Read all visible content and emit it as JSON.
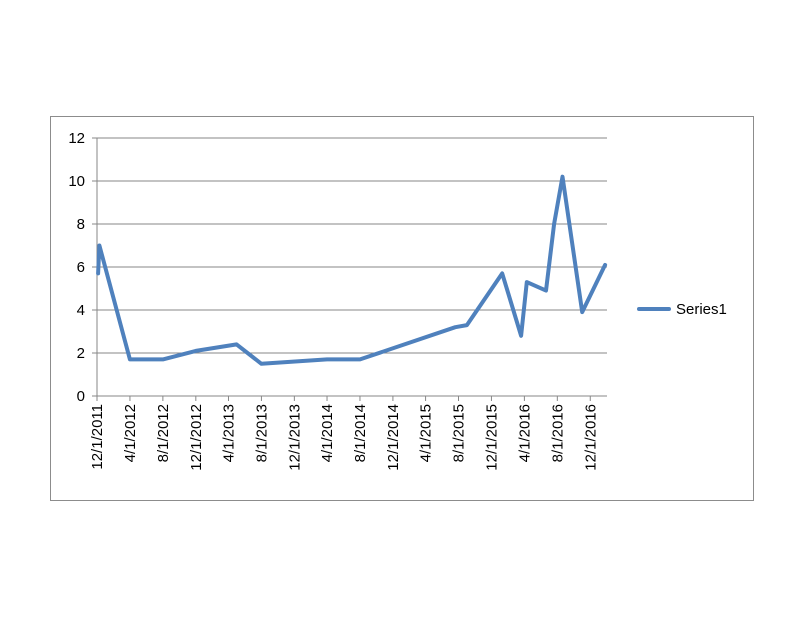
{
  "chart_data": {
    "type": "line",
    "title": "",
    "xlabel": "",
    "ylabel": "",
    "ylim": [
      0,
      12
    ],
    "yticks": [
      0,
      2,
      4,
      6,
      8,
      10,
      12
    ],
    "xlim": [
      "2011-12-01",
      "2017-02-01"
    ],
    "x_tick_labels": [
      "12/1/2011",
      "4/1/2012",
      "8/1/2012",
      "12/1/2012",
      "4/1/2013",
      "8/1/2013",
      "12/1/2013",
      "4/1/2014",
      "8/1/2014",
      "12/1/2014",
      "4/1/2015",
      "8/1/2015",
      "12/1/2015",
      "4/1/2016",
      "8/1/2016",
      "12/1/2016"
    ],
    "x_tick_dates": [
      "2011-12-01",
      "2012-04-01",
      "2012-08-01",
      "2012-12-01",
      "2013-04-01",
      "2013-08-01",
      "2013-12-01",
      "2014-04-01",
      "2014-08-01",
      "2014-12-01",
      "2015-04-01",
      "2015-08-01",
      "2015-12-01",
      "2016-04-01",
      "2016-08-01",
      "2016-12-01"
    ],
    "grid": true,
    "legend_position": "right",
    "series": [
      {
        "name": "Series1",
        "color": "#4f81bd",
        "points": [
          {
            "x": "2011-12-05",
            "y": 5.7
          },
          {
            "x": "2011-12-10",
            "y": 7.0
          },
          {
            "x": "2012-04-01",
            "y": 1.7
          },
          {
            "x": "2012-08-01",
            "y": 1.7
          },
          {
            "x": "2012-12-01",
            "y": 2.1
          },
          {
            "x": "2013-05-01",
            "y": 2.4
          },
          {
            "x": "2013-08-01",
            "y": 1.5
          },
          {
            "x": "2014-04-01",
            "y": 1.7
          },
          {
            "x": "2014-08-01",
            "y": 1.7
          },
          {
            "x": "2015-07-20",
            "y": 3.2
          },
          {
            "x": "2015-09-01",
            "y": 3.3
          },
          {
            "x": "2016-01-10",
            "y": 5.7
          },
          {
            "x": "2016-03-20",
            "y": 2.8
          },
          {
            "x": "2016-04-10",
            "y": 5.3
          },
          {
            "x": "2016-06-20",
            "y": 4.9
          },
          {
            "x": "2016-07-20",
            "y": 8.0
          },
          {
            "x": "2016-08-20",
            "y": 10.2
          },
          {
            "x": "2016-11-01",
            "y": 3.9
          },
          {
            "x": "2017-01-25",
            "y": 6.1
          }
        ]
      }
    ]
  }
}
